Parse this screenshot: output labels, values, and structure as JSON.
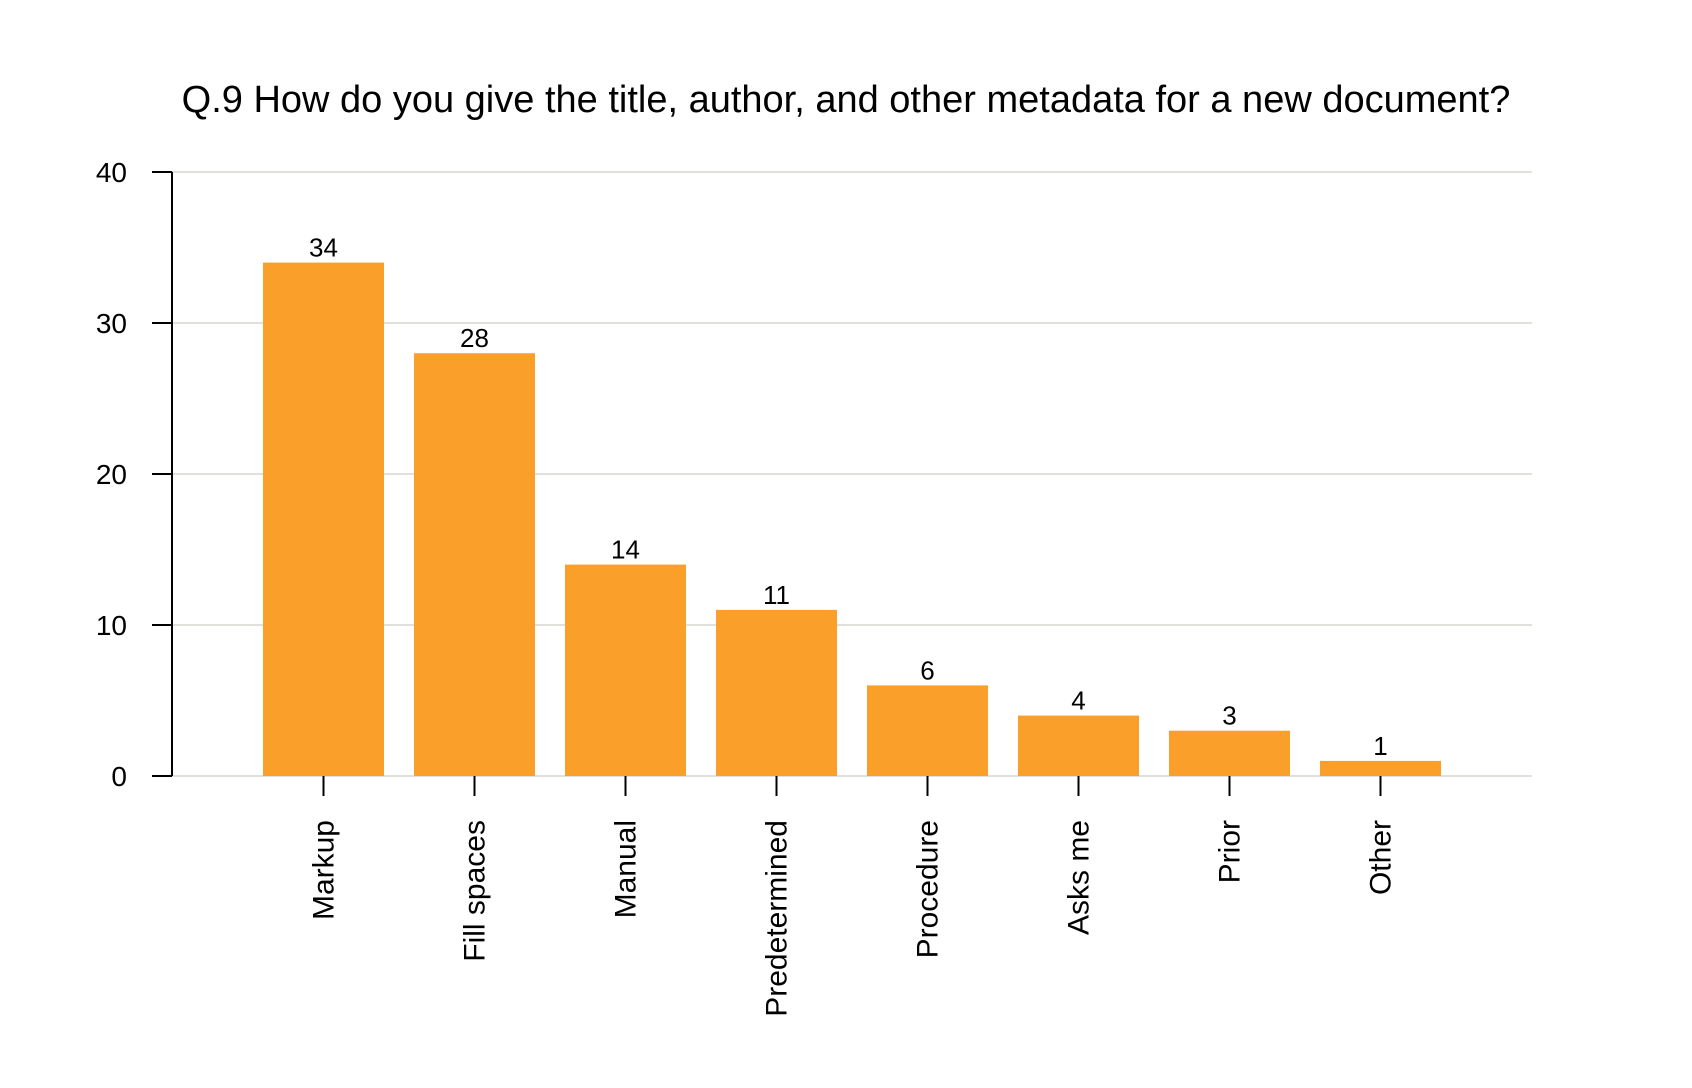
{
  "chart_data": {
    "type": "bar",
    "title": "Q.9 How do you give the title, author, and other metadata for a new document?",
    "categories": [
      "Markup",
      "Fill spaces",
      "Manual",
      "Predetermined",
      "Procedure",
      "Asks me",
      "Prior",
      "Other"
    ],
    "values": [
      34,
      28,
      14,
      11,
      6,
      4,
      3,
      1
    ],
    "data_labels": [
      "34",
      "28",
      "14",
      "11",
      "6",
      "4",
      "3",
      "1"
    ],
    "yticks": [
      0,
      10,
      20,
      30,
      40
    ],
    "ytick_labels": [
      "0",
      "10",
      "20",
      "30",
      "40"
    ],
    "ylim": [
      0,
      40
    ],
    "xlabel": "",
    "ylabel": "",
    "grid": true,
    "legend": "none",
    "bar_color": "#f99f2a",
    "grid_color": "#d9d5cf"
  }
}
